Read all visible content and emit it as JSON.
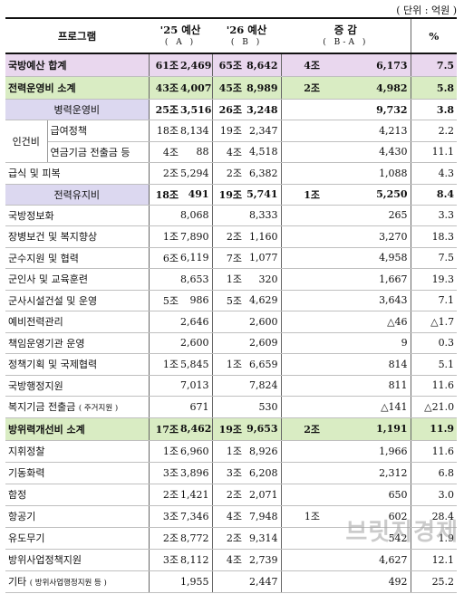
{
  "unit_label": "( 단위 : 억원 )",
  "header": {
    "program": "프로그램",
    "budget_25": "'25 예산",
    "budget_25_sub": "( A )",
    "budget_26": "'26 예산",
    "budget_26_sub": "( B )",
    "change": "증 감",
    "change_sub": "( B-A )",
    "pct": "%"
  },
  "rows": [
    {
      "type": "total",
      "label": "국방예산 합계",
      "a_jo": "61조",
      "a": "2,469",
      "b_jo": "65조",
      "b": "8,642",
      "c_jo": "4조",
      "c": "6,173",
      "pct": "7.5"
    },
    {
      "type": "subtotal",
      "label": "전력운영비 소계",
      "a_jo": "43조",
      "a": "4,007",
      "b_jo": "45조",
      "b": "8,989",
      "c_jo": "2조",
      "c": "4,982",
      "pct": "5.8"
    },
    {
      "type": "cat",
      "label": "병력운영비",
      "a_jo": "25조",
      "a": "3,516",
      "b_jo": "26조",
      "b": "3,248",
      "c_jo": "",
      "c": "9,732",
      "pct": "3.8"
    },
    {
      "type": "sub",
      "group": "인건비",
      "label": "급여정책",
      "a_jo": "18조",
      "a": "8,134",
      "b_jo": "19조",
      "b": "2,347",
      "c_jo": "",
      "c": "4,213",
      "pct": "2.2"
    },
    {
      "type": "sub",
      "group": "",
      "label": "연금기금 전출금 등",
      "a_jo": "4조",
      "a": "88",
      "b_jo": "4조",
      "b": "4,518",
      "c_jo": "",
      "c": "4,430",
      "pct": "11.1"
    },
    {
      "type": "row",
      "label": "급식 및 피복",
      "a_jo": "2조",
      "a": "5,294",
      "b_jo": "2조",
      "b": "6,382",
      "c_jo": "",
      "c": "1,088",
      "pct": "4.3"
    },
    {
      "type": "cat",
      "label": "전력유지비",
      "a_jo": "18조",
      "a": "491",
      "b_jo": "19조",
      "b": "5,741",
      "c_jo": "1조",
      "c": "5,250",
      "pct": "8.4"
    },
    {
      "type": "row",
      "label": "국방정보화",
      "a_jo": "",
      "a": "8,068",
      "b_jo": "",
      "b": "8,333",
      "c_jo": "",
      "c": "265",
      "pct": "3.3"
    },
    {
      "type": "row",
      "label": "장병보건 및 복지향상",
      "a_jo": "1조",
      "a": "7,890",
      "b_jo": "2조",
      "b": "1,160",
      "c_jo": "",
      "c": "3,270",
      "pct": "18.3"
    },
    {
      "type": "row",
      "label": "군수지원 및 협력",
      "a_jo": "6조",
      "a": "6,119",
      "b_jo": "7조",
      "b": "1,077",
      "c_jo": "",
      "c": "4,958",
      "pct": "7.5"
    },
    {
      "type": "row",
      "label": "군인사 및 교육훈련",
      "a_jo": "",
      "a": "8,653",
      "b_jo": "1조",
      "b": "320",
      "c_jo": "",
      "c": "1,667",
      "pct": "19.3"
    },
    {
      "type": "row",
      "label": "군사시설건설 및 운영",
      "a_jo": "5조",
      "a": "986",
      "b_jo": "5조",
      "b": "4,629",
      "c_jo": "",
      "c": "3,643",
      "pct": "7.1"
    },
    {
      "type": "row",
      "label": "예비전력관리",
      "a_jo": "",
      "a": "2,646",
      "b_jo": "",
      "b": "2,600",
      "c_jo": "",
      "c": "△46",
      "pct": "△1.7"
    },
    {
      "type": "row",
      "label": "책임운영기관 운영",
      "a_jo": "",
      "a": "2,600",
      "b_jo": "",
      "b": "2,609",
      "c_jo": "",
      "c": "9",
      "pct": "0.3"
    },
    {
      "type": "row",
      "label": "정책기획 및 국제협력",
      "a_jo": "1조",
      "a": "5,845",
      "b_jo": "1조",
      "b": "6,659",
      "c_jo": "",
      "c": "814",
      "pct": "5.1"
    },
    {
      "type": "row",
      "label": "국방행정지원",
      "a_jo": "",
      "a": "7,013",
      "b_jo": "",
      "b": "7,824",
      "c_jo": "",
      "c": "811",
      "pct": "11.6"
    },
    {
      "type": "row",
      "label": "복지기금 전출금",
      "label_note": "( 주거지원 )",
      "a_jo": "",
      "a": "671",
      "b_jo": "",
      "b": "530",
      "c_jo": "",
      "c": "△141",
      "pct": "△21.0"
    },
    {
      "type": "subtotal",
      "label": "방위력개선비 소계",
      "a_jo": "17조",
      "a": "8,462",
      "b_jo": "19조",
      "b": "9,653",
      "c_jo": "2조",
      "c": "1,191",
      "pct": "11.9"
    },
    {
      "type": "row2",
      "label": "지휘정찰",
      "a_jo": "1조",
      "a": "6,960",
      "b_jo": "1조",
      "b": "8,926",
      "c_jo": "",
      "c": "1,966",
      "pct": "11.6"
    },
    {
      "type": "row2",
      "label": "기동화력",
      "a_jo": "3조",
      "a": "3,896",
      "b_jo": "3조",
      "b": "6,208",
      "c_jo": "",
      "c": "2,312",
      "pct": "6.8"
    },
    {
      "type": "row2",
      "label": "함정",
      "a_jo": "2조",
      "a": "1,421",
      "b_jo": "2조",
      "b": "2,071",
      "c_jo": "",
      "c": "650",
      "pct": "3.0"
    },
    {
      "type": "row2",
      "label": "항공기",
      "a_jo": "3조",
      "a": "7,346",
      "b_jo": "4조",
      "b": "7,948",
      "c_jo": "1조",
      "c": "602",
      "pct": "28.4"
    },
    {
      "type": "row2",
      "label": "유도무기",
      "a_jo": "2조",
      "a": "8,772",
      "b_jo": "2조",
      "b": "9,314",
      "c_jo": "",
      "c": "542",
      "pct": "1.9"
    },
    {
      "type": "row2",
      "label": "방위사업정책지원",
      "a_jo": "3조",
      "a": "8,112",
      "b_jo": "4조",
      "b": "2,739",
      "c_jo": "",
      "c": "4,627",
      "pct": "12.1"
    },
    {
      "type": "row2",
      "label": "기타",
      "label_note": "( 방위사업행정지원 등 )",
      "a_jo": "",
      "a": "1,955",
      "b_jo": "",
      "b": "2,447",
      "c_jo": "",
      "c": "492",
      "pct": "25.2"
    }
  ],
  "watermark": "브릿지경제"
}
